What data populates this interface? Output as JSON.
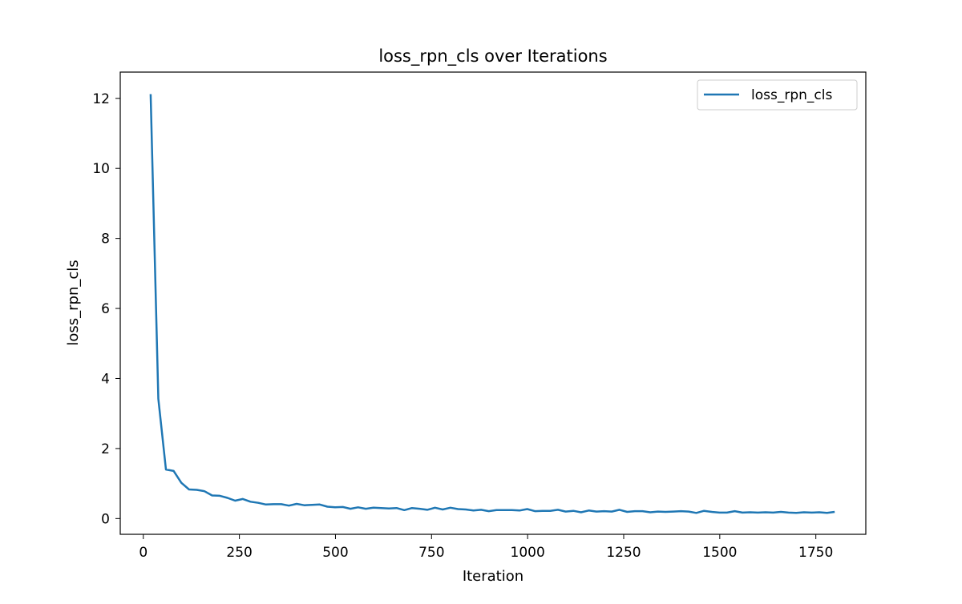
{
  "chart_data": {
    "type": "line",
    "title": "loss_rpn_cls over Iterations",
    "xlabel": "Iteration",
    "ylabel": "loss_rpn_cls",
    "xlim": [
      -60,
      1880
    ],
    "ylim": [
      -0.45,
      12.75
    ],
    "xticks": [
      0,
      250,
      500,
      750,
      1000,
      1250,
      1500,
      1750
    ],
    "yticks": [
      0,
      2,
      4,
      6,
      8,
      10,
      12
    ],
    "grid": false,
    "legend_position": "upper right",
    "series": [
      {
        "name": "loss_rpn_cls",
        "color": "#1f77b4",
        "x": [
          19,
          39,
          59,
          79,
          99,
          119,
          139,
          159,
          179,
          199,
          219,
          239,
          259,
          279,
          299,
          319,
          339,
          359,
          379,
          399,
          419,
          439,
          459,
          479,
          499,
          519,
          539,
          559,
          579,
          599,
          619,
          639,
          659,
          679,
          699,
          719,
          739,
          759,
          779,
          799,
          819,
          839,
          859,
          879,
          899,
          919,
          939,
          959,
          979,
          999,
          1019,
          1039,
          1059,
          1079,
          1099,
          1119,
          1139,
          1159,
          1179,
          1199,
          1219,
          1239,
          1259,
          1279,
          1299,
          1319,
          1339,
          1359,
          1379,
          1399,
          1419,
          1439,
          1459,
          1479,
          1499,
          1519,
          1539,
          1559,
          1579,
          1599,
          1619,
          1639,
          1659,
          1679,
          1699,
          1719,
          1739,
          1759,
          1779,
          1799
        ],
        "y": [
          12.12,
          3.42,
          1.4,
          1.36,
          1.02,
          0.83,
          0.82,
          0.78,
          0.66,
          0.65,
          0.59,
          0.51,
          0.56,
          0.48,
          0.45,
          0.4,
          0.41,
          0.41,
          0.37,
          0.42,
          0.38,
          0.39,
          0.4,
          0.34,
          0.32,
          0.33,
          0.28,
          0.32,
          0.28,
          0.31,
          0.3,
          0.29,
          0.3,
          0.24,
          0.3,
          0.28,
          0.25,
          0.31,
          0.26,
          0.31,
          0.27,
          0.26,
          0.23,
          0.25,
          0.21,
          0.24,
          0.24,
          0.24,
          0.23,
          0.27,
          0.21,
          0.22,
          0.22,
          0.25,
          0.2,
          0.22,
          0.18,
          0.23,
          0.2,
          0.21,
          0.2,
          0.25,
          0.19,
          0.21,
          0.21,
          0.18,
          0.2,
          0.19,
          0.2,
          0.21,
          0.2,
          0.16,
          0.22,
          0.19,
          0.17,
          0.17,
          0.21,
          0.17,
          0.18,
          0.17,
          0.18,
          0.17,
          0.19,
          0.17,
          0.16,
          0.18,
          0.17,
          0.18,
          0.16,
          0.19
        ]
      }
    ]
  }
}
